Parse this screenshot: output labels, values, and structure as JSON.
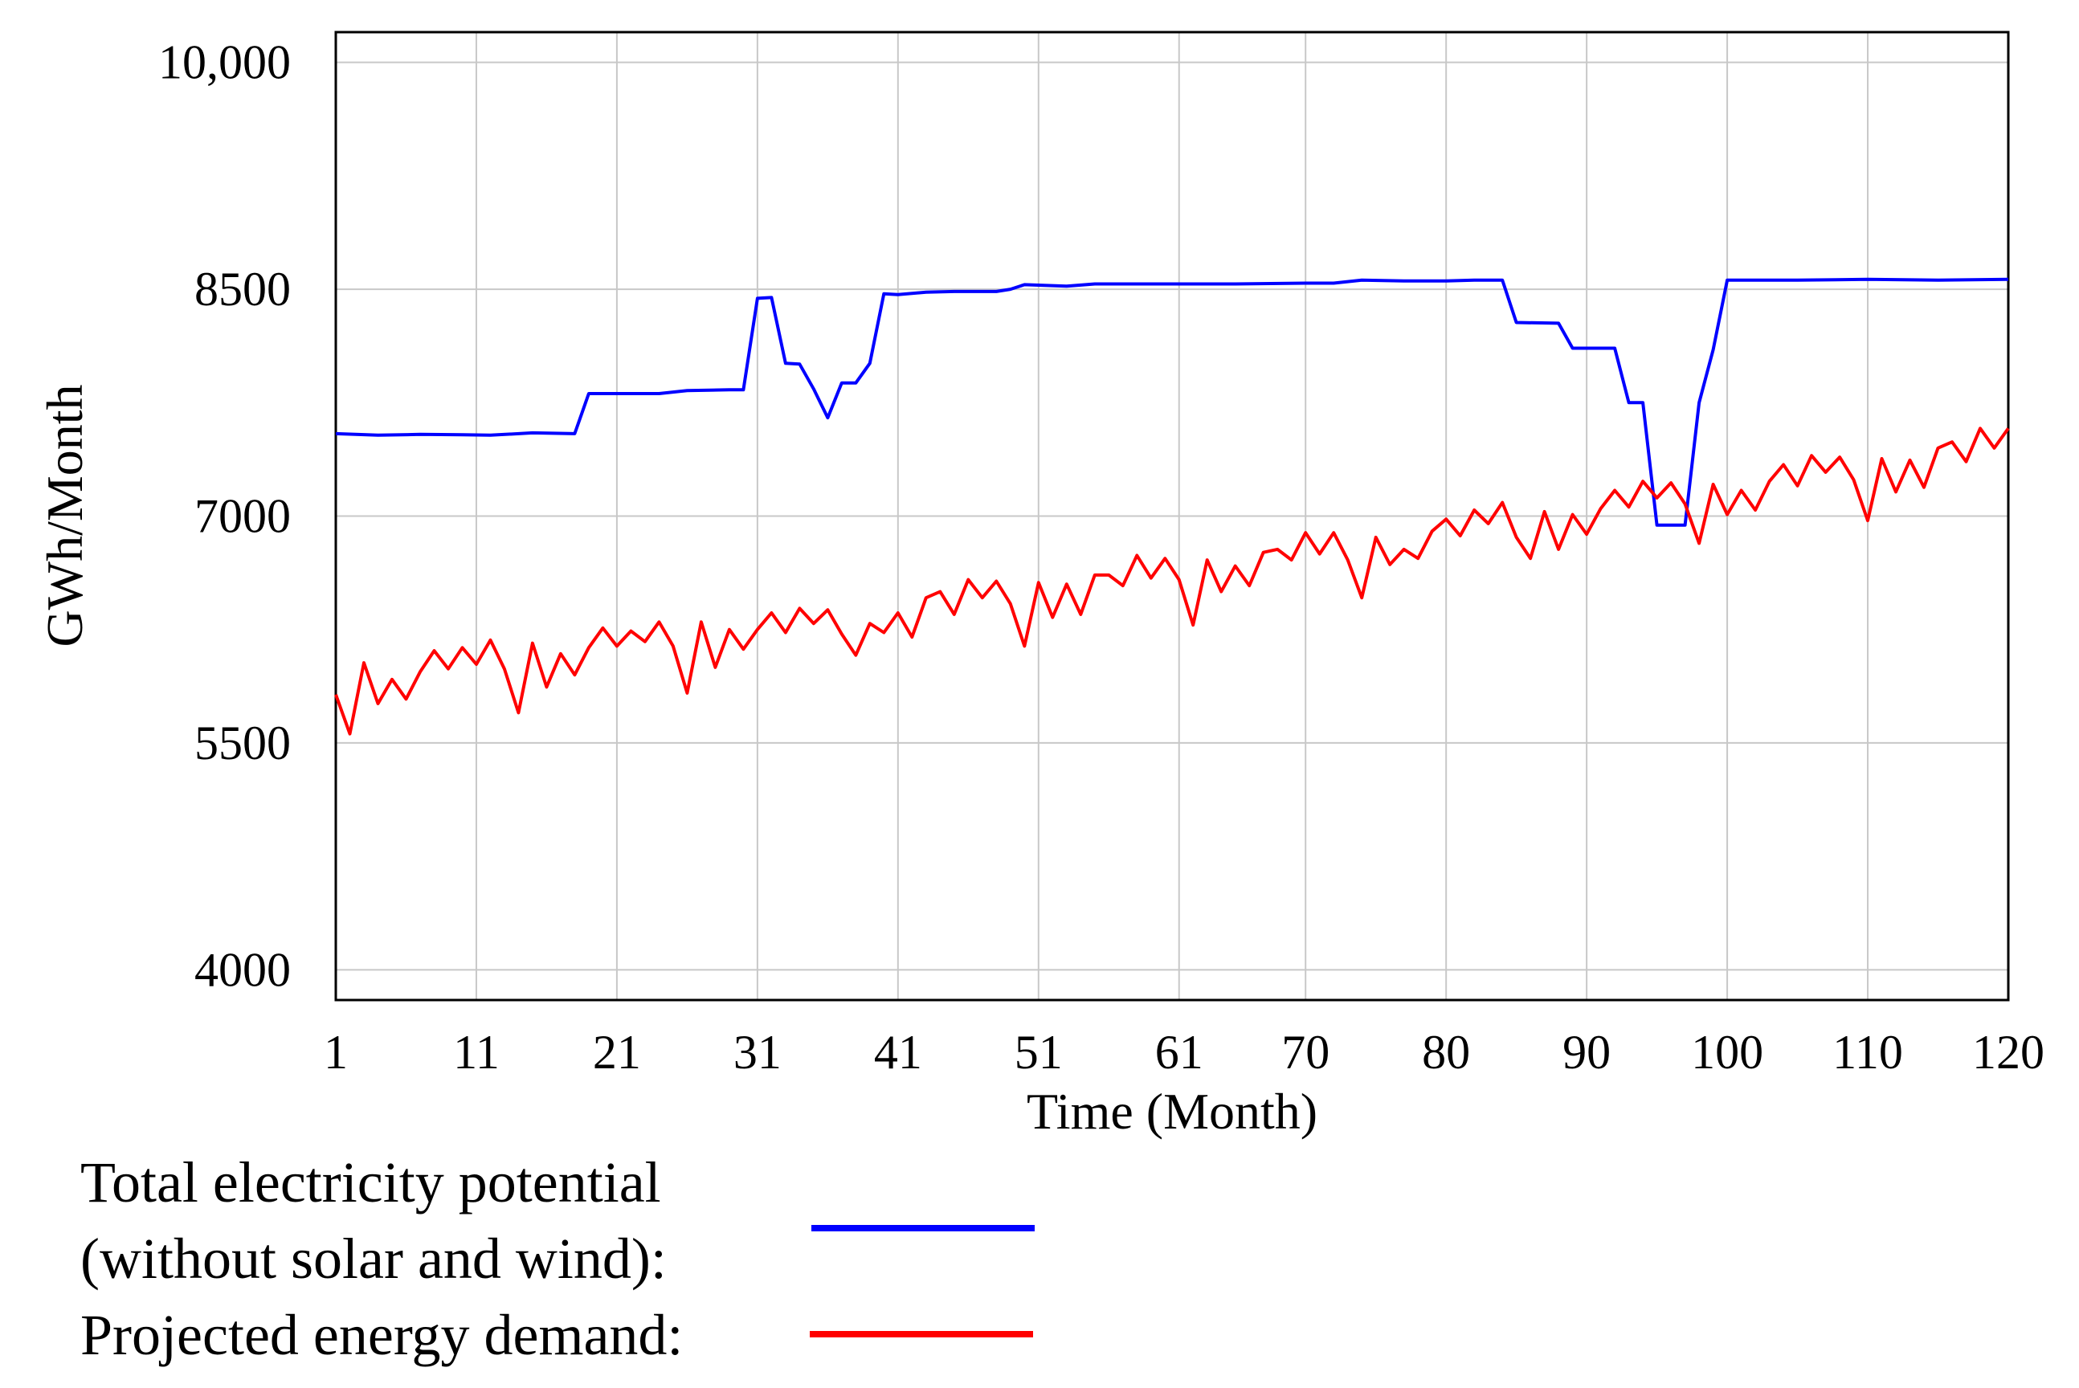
{
  "chart_data": {
    "type": "line",
    "title": "",
    "xlabel": "Time (Month)",
    "ylabel": "GWh/Month",
    "xlim": [
      1,
      120
    ],
    "ylim": [
      3800,
      10200
    ],
    "x_ticks": [
      1,
      11,
      21,
      31,
      41,
      51,
      61,
      70,
      80,
      90,
      100,
      110,
      120
    ],
    "y_ticks": [
      4000,
      5500,
      7000,
      8500,
      10000
    ],
    "y_tick_labels": [
      "4000",
      "5500",
      "7000",
      "8500",
      "10,000"
    ],
    "grid": true,
    "legend_position": "bottom-left",
    "series": [
      {
        "name": "Total electricity potential (without solar and wind):",
        "legend_lines": [
          "Total electricity potential",
          "(without solar and wind):"
        ],
        "color": "#0000ff",
        "points": [
          [
            1,
            7545
          ],
          [
            4,
            7535
          ],
          [
            7,
            7540
          ],
          [
            10,
            7538
          ],
          [
            12,
            7535
          ],
          [
            15,
            7550
          ],
          [
            18,
            7545
          ],
          [
            19,
            7810
          ],
          [
            21,
            7810
          ],
          [
            24,
            7810
          ],
          [
            26,
            7830
          ],
          [
            29,
            7835
          ],
          [
            30,
            7835
          ],
          [
            31,
            8440
          ],
          [
            32,
            8445
          ],
          [
            33,
            8010
          ],
          [
            34,
            8005
          ],
          [
            35,
            7840
          ],
          [
            36,
            7650
          ],
          [
            37,
            7880
          ],
          [
            38,
            7880
          ],
          [
            39,
            8010
          ],
          [
            40,
            8470
          ],
          [
            41,
            8465
          ],
          [
            43,
            8480
          ],
          [
            45,
            8485
          ],
          [
            48,
            8485
          ],
          [
            49,
            8500
          ],
          [
            50,
            8530
          ],
          [
            53,
            8520
          ],
          [
            55,
            8535
          ],
          [
            60,
            8535
          ],
          [
            65,
            8535
          ],
          [
            70,
            8540
          ],
          [
            72,
            8540
          ],
          [
            74,
            8560
          ],
          [
            77,
            8555
          ],
          [
            80,
            8555
          ],
          [
            82,
            8560
          ],
          [
            84,
            8560
          ],
          [
            85,
            8280
          ],
          [
            88,
            8275
          ],
          [
            89,
            8110
          ],
          [
            92,
            8110
          ],
          [
            93,
            7750
          ],
          [
            94,
            7750
          ],
          [
            95,
            6940
          ],
          [
            96,
            6940
          ],
          [
            97,
            6940
          ],
          [
            98,
            7750
          ],
          [
            99,
            8100
          ],
          [
            100,
            8560
          ],
          [
            105,
            8560
          ],
          [
            110,
            8565
          ],
          [
            115,
            8560
          ],
          [
            120,
            8565
          ]
        ]
      },
      {
        "name": "Projected energy demand:",
        "legend_lines": [
          "Projected energy demand:"
        ],
        "color": "#ff0000",
        "points": [
          [
            1,
            5820
          ],
          [
            2,
            5560
          ],
          [
            3,
            6030
          ],
          [
            4,
            5760
          ],
          [
            5,
            5920
          ],
          [
            6,
            5790
          ],
          [
            7,
            5970
          ],
          [
            8,
            6110
          ],
          [
            9,
            5990
          ],
          [
            10,
            6130
          ],
          [
            11,
            6020
          ],
          [
            12,
            6180
          ],
          [
            13,
            5990
          ],
          [
            14,
            5700
          ],
          [
            15,
            6160
          ],
          [
            16,
            5870
          ],
          [
            17,
            6090
          ],
          [
            18,
            5950
          ],
          [
            19,
            6130
          ],
          [
            20,
            6260
          ],
          [
            21,
            6140
          ],
          [
            22,
            6240
          ],
          [
            23,
            6170
          ],
          [
            24,
            6300
          ],
          [
            25,
            6140
          ],
          [
            26,
            5830
          ],
          [
            27,
            6300
          ],
          [
            28,
            6000
          ],
          [
            29,
            6250
          ],
          [
            30,
            6120
          ],
          [
            31,
            6250
          ],
          [
            32,
            6360
          ],
          [
            33,
            6230
          ],
          [
            34,
            6390
          ],
          [
            35,
            6290
          ],
          [
            36,
            6380
          ],
          [
            37,
            6220
          ],
          [
            38,
            6080
          ],
          [
            39,
            6290
          ],
          [
            40,
            6230
          ],
          [
            41,
            6360
          ],
          [
            42,
            6200
          ],
          [
            43,
            6460
          ],
          [
            44,
            6500
          ],
          [
            45,
            6350
          ],
          [
            46,
            6580
          ],
          [
            47,
            6460
          ],
          [
            48,
            6570
          ],
          [
            49,
            6420
          ],
          [
            50,
            6140
          ],
          [
            51,
            6560
          ],
          [
            52,
            6330
          ],
          [
            53,
            6550
          ],
          [
            54,
            6350
          ],
          [
            55,
            6610
          ],
          [
            56,
            6610
          ],
          [
            57,
            6540
          ],
          [
            58,
            6740
          ],
          [
            59,
            6590
          ],
          [
            60,
            6720
          ],
          [
            61,
            6580
          ],
          [
            62,
            6280
          ],
          [
            63,
            6710
          ],
          [
            64,
            6500
          ],
          [
            65,
            6670
          ],
          [
            66,
            6540
          ],
          [
            67,
            6760
          ],
          [
            68,
            6780
          ],
          [
            69,
            6710
          ],
          [
            70,
            6890
          ],
          [
            71,
            6750
          ],
          [
            72,
            6890
          ],
          [
            73,
            6710
          ],
          [
            74,
            6460
          ],
          [
            75,
            6860
          ],
          [
            76,
            6680
          ],
          [
            77,
            6780
          ],
          [
            78,
            6720
          ],
          [
            79,
            6900
          ],
          [
            80,
            6980
          ],
          [
            81,
            6870
          ],
          [
            82,
            7040
          ],
          [
            83,
            6950
          ],
          [
            84,
            7090
          ],
          [
            85,
            6860
          ],
          [
            86,
            6720
          ],
          [
            87,
            7030
          ],
          [
            88,
            6780
          ],
          [
            89,
            7010
          ],
          [
            90,
            6880
          ],
          [
            91,
            7050
          ],
          [
            92,
            7170
          ],
          [
            93,
            7060
          ],
          [
            94,
            7230
          ],
          [
            95,
            7120
          ],
          [
            96,
            7220
          ],
          [
            97,
            7080
          ],
          [
            98,
            6820
          ],
          [
            99,
            7210
          ],
          [
            100,
            7010
          ],
          [
            101,
            7170
          ],
          [
            102,
            7040
          ],
          [
            103,
            7230
          ],
          [
            104,
            7340
          ],
          [
            105,
            7200
          ],
          [
            106,
            7400
          ],
          [
            107,
            7290
          ],
          [
            108,
            7390
          ],
          [
            109,
            7240
          ],
          [
            110,
            6970
          ],
          [
            111,
            7380
          ],
          [
            112,
            7160
          ],
          [
            113,
            7370
          ],
          [
            114,
            7190
          ],
          [
            115,
            7450
          ],
          [
            116,
            7490
          ],
          [
            117,
            7360
          ],
          [
            118,
            7580
          ],
          [
            119,
            7450
          ],
          [
            120,
            7580
          ]
        ]
      }
    ]
  }
}
